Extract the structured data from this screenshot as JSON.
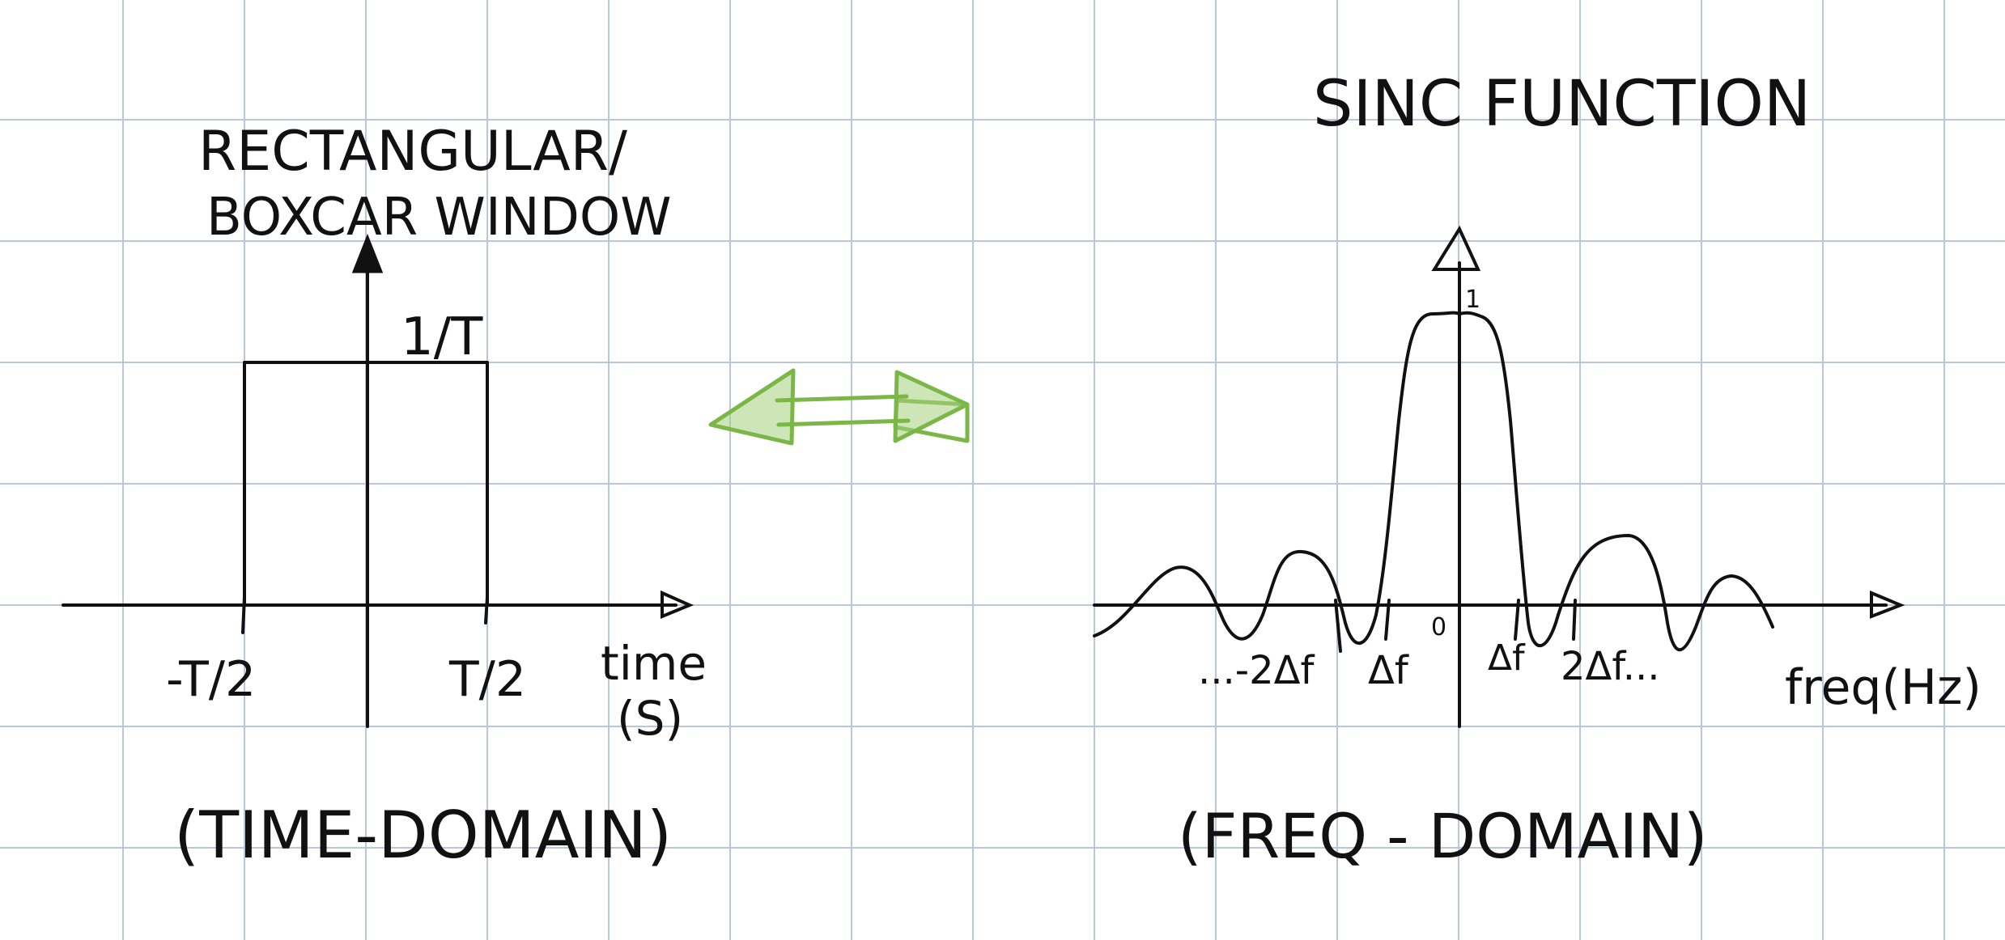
{
  "colors": {
    "paper": "#ffffff",
    "grid": "#b9c6db",
    "ink": "#111111",
    "accent": "#7ab648"
  },
  "left": {
    "title_line1": "RECTANGULAR/",
    "title_line2": "BOXCAR  WINDOW",
    "height_label": "1/T",
    "tick_left": "-T/2",
    "tick_right": "T/2",
    "axis_label_line1": "time",
    "axis_label_line2": "(S)",
    "caption": "(TIME-DOMAIN)"
  },
  "right": {
    "title": "SINC FUNCTION",
    "peak_label": "1",
    "origin_label": "0",
    "tick_neg_far": "...-2Δf",
    "tick_neg": "Δf",
    "tick_pos": "Δf",
    "tick_pos_far": "2Δf...",
    "axis_label": "freq(Hz)",
    "caption": "(FREQ - DOMAIN)"
  },
  "transform_arrow": "double-headed-arrow-icon"
}
